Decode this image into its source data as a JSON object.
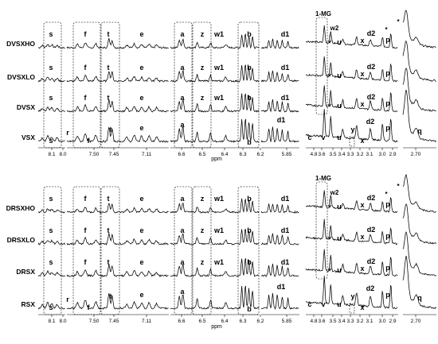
{
  "chart_data": [
    {
      "type": "line",
      "x_label": "ppm",
      "series": [
        {
          "name": "DVSXHO"
        },
        {
          "name": "DVSXLO"
        },
        {
          "name": "DVSX"
        },
        {
          "name": "VSX"
        }
      ]
    },
    {
      "type": "line",
      "x_label": "ppm",
      "series": [
        {
          "name": "DRSXHO"
        },
        {
          "name": "DRSXLO"
        },
        {
          "name": "DRSX"
        },
        {
          "name": "RSX"
        }
      ]
    }
  ],
  "panels": [
    {
      "samples": [
        "DVSXHO",
        "DVSXLO",
        "DVSX",
        "VSX"
      ],
      "xlabel": "ppm",
      "ticks": [
        "8.1",
        "8.0",
        "7.50",
        "7.45",
        "7.11",
        "6.6",
        "6.5",
        "6.4",
        "6.3",
        "6.2",
        "5.85",
        "4.8",
        "3.6",
        "3.5",
        "3.4",
        "3.3",
        "3.2",
        "3.1",
        "3.0",
        "2.9",
        "2.70"
      ],
      "peaks": [
        "s",
        "f",
        "t",
        "e",
        "a",
        "z",
        "w1",
        "b",
        "d1",
        "1-MG",
        "w2",
        "u",
        "x",
        "d2",
        "p",
        "r",
        "c",
        "v",
        "y",
        "q",
        "*"
      ]
    },
    {
      "samples": [
        "DRSXHO",
        "DRSXLO",
        "DRSX",
        "RSX"
      ],
      "xlabel": "ppm",
      "ticks": [
        "8.1",
        "8.0",
        "7.50",
        "7.45",
        "7.11",
        "6.6",
        "6.5",
        "6.4",
        "6.3",
        "6.2",
        "5.85",
        "4.8",
        "3.6",
        "3.5",
        "3.4",
        "3.3",
        "3.2",
        "3.1",
        "3.0",
        "2.9",
        "2.70"
      ],
      "peaks": [
        "s",
        "f",
        "t",
        "e",
        "a",
        "z",
        "w1",
        "b",
        "d1",
        "1-MG",
        "w2",
        "u",
        "x",
        "d2",
        "p",
        "r",
        "c",
        "v",
        "y",
        "q",
        "*"
      ]
    }
  ]
}
